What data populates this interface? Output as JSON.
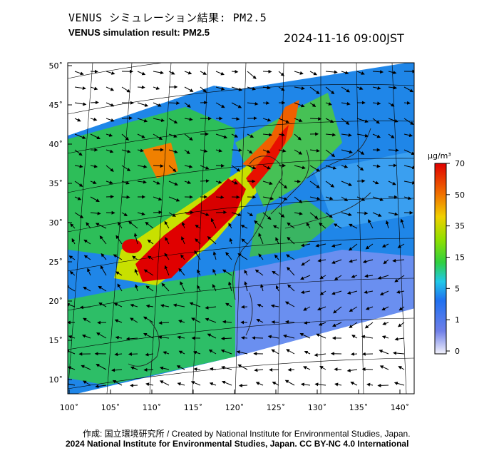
{
  "header": {
    "title_ja": "VENUS シミュレーション結果: PM2.5",
    "title_en": "VENUS simulation result: PM2.5",
    "timestamp": "2024-11-16 09:00JST"
  },
  "map": {
    "lat_labels": [
      "50˚",
      "45˚",
      "40˚",
      "35˚",
      "30˚",
      "25˚",
      "20˚",
      "15˚",
      "10˚"
    ],
    "lon_labels": [
      "100˚",
      "105˚",
      "110˚",
      "115˚",
      "120˚",
      "125˚",
      "130˚",
      "135˚",
      "140˚"
    ],
    "lat_range": [
      9,
      50
    ],
    "lon_range": [
      100,
      141
    ],
    "layer": "PM2.5 concentration with wind vectors"
  },
  "colorbar": {
    "unit": "μg/m³",
    "ticks": [
      "70",
      "50",
      "35",
      "15",
      "5",
      "1",
      "0"
    ],
    "colors": [
      "#e8e8f8",
      "#4060e0",
      "#20a0f0",
      "#20e0e0",
      "#30d030",
      "#a0e000",
      "#f0c000",
      "#f06000",
      "#e00000"
    ]
  },
  "footer": {
    "credit": "作成: 国立環境研究所 / Created by National Institute for Environmental Studies, Japan.",
    "copyright": "2024 National Institute for Environmental Studies, Japan. CC BY-NC 4.0 International"
  }
}
